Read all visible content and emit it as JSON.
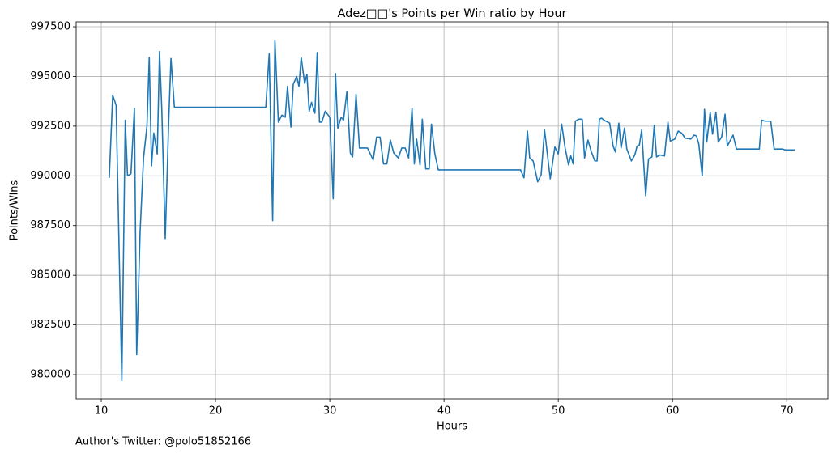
{
  "chart_data": {
    "type": "line",
    "title": "Adez□□'s Points per Win ratio by Hour",
    "xlabel": "Hours",
    "ylabel": "Points/Wins",
    "footnote": "Author's Twitter: @polo51852166",
    "color": "#1f77b4",
    "grid": true,
    "xlim": [
      7.8,
      73.6
    ],
    "xticks": [
      10,
      20,
      30,
      40,
      50,
      60,
      70
    ],
    "ylim": [
      978780,
      997745
    ],
    "yticks": [
      980000,
      982500,
      985000,
      987500,
      990000,
      992500,
      995000,
      997500
    ],
    "x": [
      10.7,
      11.0,
      11.3,
      11.8,
      12.1,
      12.3,
      12.6,
      12.9,
      13.1,
      13.4,
      13.7,
      14.0,
      14.2,
      14.4,
      14.6,
      14.9,
      15.1,
      15.3,
      15.6,
      15.9,
      16.1,
      16.4,
      24.4,
      24.7,
      25.0,
      25.2,
      25.5,
      25.8,
      26.1,
      26.3,
      26.6,
      26.8,
      27.1,
      27.3,
      27.5,
      27.8,
      28.0,
      28.2,
      28.4,
      28.7,
      28.9,
      29.1,
      29.3,
      29.6,
      30.0,
      30.3,
      30.5,
      30.7,
      31.0,
      31.2,
      31.5,
      31.8,
      32.0,
      32.3,
      32.6,
      33.0,
      33.3,
      33.8,
      34.1,
      34.4,
      34.7,
      35.0,
      35.3,
      35.6,
      36.0,
      36.3,
      36.6,
      36.9,
      37.2,
      37.4,
      37.6,
      37.9,
      38.1,
      38.4,
      38.7,
      38.9,
      39.2,
      39.5,
      39.8,
      46.7,
      47.0,
      47.3,
      47.5,
      47.8,
      48.2,
      48.5,
      48.8,
      49.3,
      49.7,
      50.0,
      50.3,
      50.6,
      50.9,
      51.1,
      51.3,
      51.5,
      51.8,
      52.1,
      52.3,
      52.6,
      52.9,
      53.2,
      53.4,
      53.6,
      53.8,
      54.0,
      54.5,
      54.8,
      55.0,
      55.3,
      55.5,
      55.8,
      56.0,
      56.4,
      56.7,
      56.9,
      57.1,
      57.3,
      57.65,
      57.9,
      58.2,
      58.4,
      58.6,
      58.9,
      59.3,
      59.6,
      59.8,
      60.2,
      60.5,
      60.8,
      61.1,
      61.6,
      61.9,
      62.1,
      62.3,
      62.6,
      62.8,
      63.0,
      63.3,
      63.5,
      63.8,
      64.0,
      64.3,
      64.6,
      64.8,
      65.3,
      65.6,
      67.6,
      67.8,
      68.1,
      68.6,
      68.9,
      69.6,
      69.9,
      70.7
    ],
    "values": [
      989900,
      994050,
      993550,
      979700,
      992800,
      990000,
      990100,
      993400,
      981000,
      987200,
      990900,
      992500,
      995950,
      990500,
      992150,
      991100,
      996250,
      993300,
      986850,
      992700,
      995900,
      993450,
      993450,
      996150,
      987750,
      996800,
      992700,
      993050,
      992950,
      994500,
      992450,
      994600,
      995000,
      994500,
      995950,
      994650,
      995100,
      993250,
      993700,
      993150,
      996200,
      992700,
      992700,
      993250,
      992950,
      988850,
      995150,
      992400,
      992950,
      992800,
      994250,
      991150,
      990950,
      994100,
      991400,
      991400,
      991400,
      990800,
      991950,
      991950,
      990600,
      990600,
      991800,
      991150,
      990900,
      991400,
      991400,
      990900,
      993400,
      990600,
      991850,
      990550,
      992850,
      990350,
      990350,
      992600,
      991100,
      990300,
      990300,
      990300,
      989900,
      992250,
      990900,
      990750,
      989700,
      990050,
      992300,
      989850,
      991450,
      991100,
      992600,
      991400,
      990550,
      991000,
      990600,
      992750,
      992850,
      992850,
      990900,
      991800,
      991200,
      990750,
      990750,
      992850,
      992900,
      992800,
      992650,
      991500,
      991200,
      992650,
      991400,
      992400,
      991350,
      990750,
      991050,
      991500,
      991550,
      992300,
      989000,
      990850,
      990950,
      992550,
      990950,
      991050,
      991000,
      992700,
      991750,
      991850,
      992250,
      992150,
      991900,
      991850,
      992050,
      992000,
      991600,
      990000,
      993350,
      991700,
      993200,
      992100,
      993200,
      991700,
      991950,
      993100,
      991500,
      992050,
      991350,
      991350,
      992800,
      992750,
      992750,
      991350,
      991350,
      991300,
      991300
    ]
  }
}
